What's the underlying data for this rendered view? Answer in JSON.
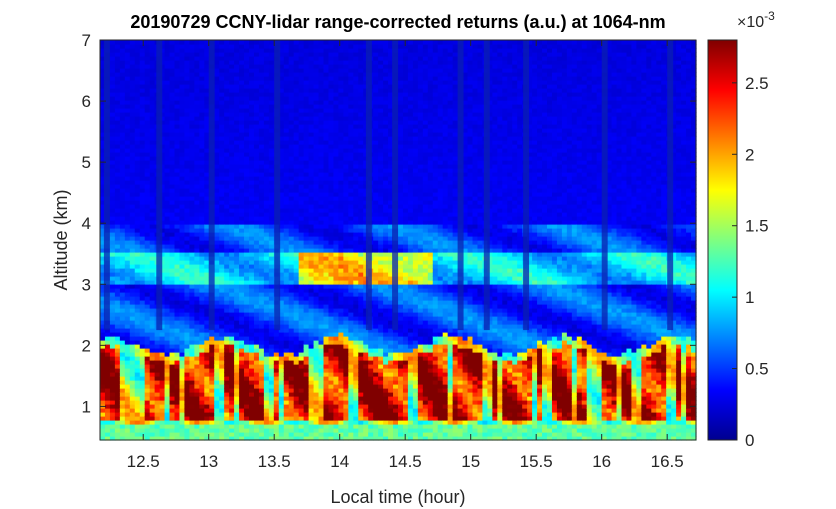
{
  "chart_data": {
    "type": "heatmap",
    "title": "20190729 CCNY-lidar range-corrected returns (a.u.) at 1064-nm",
    "xlabel": "Local time (hour)",
    "ylabel": "Altitude (km)",
    "xlim": [
      12.17,
      16.72
    ],
    "ylim": [
      0.45,
      7.0
    ],
    "x_ticks": [
      12.5,
      13,
      13.5,
      14,
      14.5,
      15,
      15.5,
      16,
      16.5
    ],
    "x_tick_labels": [
      "12.5",
      "13",
      "13.5",
      "14",
      "14.5",
      "15",
      "15.5",
      "16",
      "16.5"
    ],
    "y_ticks": [
      1,
      2,
      3,
      4,
      5,
      6,
      7
    ],
    "y_tick_labels": [
      "1",
      "2",
      "3",
      "4",
      "5",
      "6",
      "7"
    ],
    "colorbar": {
      "range": [
        0,
        2.8
      ],
      "ticks": [
        0,
        0.5,
        1,
        1.5,
        2,
        2.5
      ],
      "tick_labels": [
        "0",
        "0.5",
        "1",
        "1.5",
        "2",
        "2.5"
      ],
      "exponent_base": "×10",
      "exponent_power": "-3",
      "colormap": "jet"
    },
    "features": {
      "boundary_layer_top_km": 2.0,
      "aerosol_layer_km": [
        2.2,
        4.0
      ],
      "elevated_layer_km": [
        3.0,
        3.5
      ],
      "elevated_layer_time": [
        13.7,
        14.7
      ],
      "saturated_columns_time": [
        12.2,
        12.6,
        13.0,
        13.5,
        14.2,
        14.4,
        14.9,
        15.1,
        15.4,
        16.0,
        16.5
      ]
    },
    "grid": false
  }
}
